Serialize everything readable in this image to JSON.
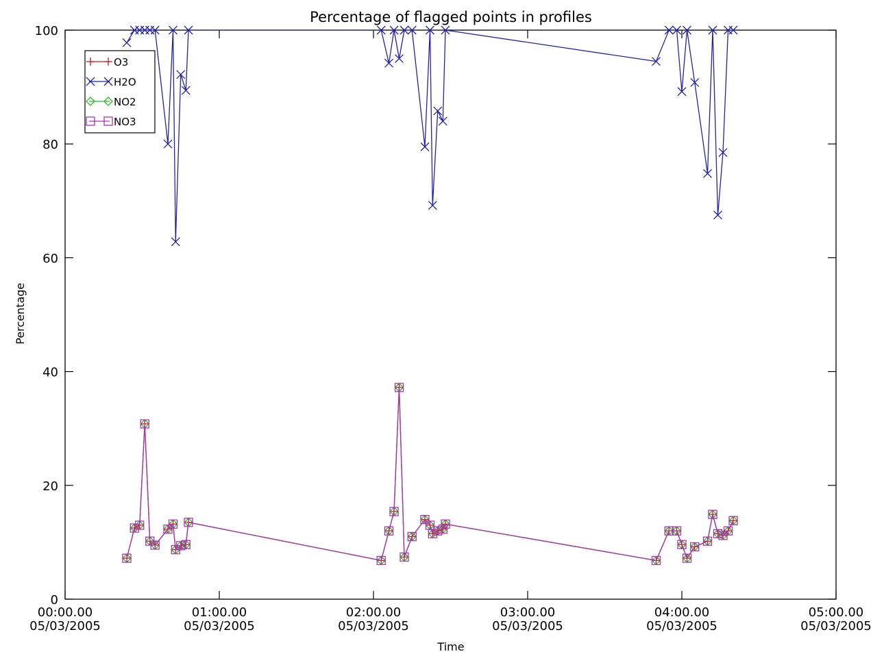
{
  "chart_data": {
    "type": "line",
    "title": "Percentage of flagged points in profiles",
    "xlabel": "Time",
    "ylabel": "Percentage",
    "xlim_minutes": [
      0,
      300
    ],
    "ylim": [
      0,
      100
    ],
    "x_tick_minutes": [
      0,
      60,
      120,
      180,
      240,
      300
    ],
    "x_tick_labels": [
      [
        "00:00.00",
        "05/03/2005"
      ],
      [
        "01:00.00",
        "05/03/2005"
      ],
      [
        "02:00.00",
        "05/03/2005"
      ],
      [
        "03:00.00",
        "05/03/2005"
      ],
      [
        "04:00.00",
        "05/03/2005"
      ],
      [
        "05:00.00",
        "05/03/2005"
      ]
    ],
    "y_ticks": [
      0,
      20,
      40,
      60,
      80,
      100
    ],
    "y_tick_labels": [
      "0",
      "20",
      "40",
      "60",
      "80",
      "100"
    ],
    "grid": false,
    "legend_position": "top-left",
    "series": [
      {
        "name": "O3",
        "color": "#d01818",
        "marker": "plus",
        "points": [
          [
            24,
            7.2
          ],
          [
            27,
            12.5
          ],
          [
            29,
            13
          ],
          [
            31,
            30.8
          ],
          [
            33,
            10.2
          ],
          [
            35,
            9.5
          ],
          [
            40,
            12.3
          ],
          [
            42,
            13.2
          ],
          [
            43,
            8.7
          ],
          [
            45,
            9.4
          ],
          [
            47,
            9.6
          ],
          [
            48,
            13.5
          ],
          [
            123,
            6.8
          ],
          [
            126,
            12
          ],
          [
            128,
            15.4
          ],
          [
            130,
            37.2
          ],
          [
            132,
            7.4
          ],
          [
            135,
            11
          ],
          [
            140,
            14
          ],
          [
            142,
            13
          ],
          [
            143,
            11.5
          ],
          [
            145,
            12
          ],
          [
            147,
            12.3
          ],
          [
            148,
            13.2
          ],
          [
            230,
            6.8
          ],
          [
            235,
            12
          ],
          [
            238,
            12
          ],
          [
            240,
            9.6
          ],
          [
            242,
            7.2
          ],
          [
            245,
            9.2
          ],
          [
            250,
            10.2
          ],
          [
            252,
            14.9
          ],
          [
            254,
            11.5
          ],
          [
            256,
            11.2
          ],
          [
            258,
            12
          ],
          [
            260,
            13.8
          ]
        ]
      },
      {
        "name": "H2O",
        "color": "#2222a8",
        "marker": "x",
        "points": [
          [
            24,
            97.8
          ],
          [
            27,
            100
          ],
          [
            29,
            100
          ],
          [
            31,
            100
          ],
          [
            33,
            100
          ],
          [
            35,
            100
          ],
          [
            40,
            80
          ],
          [
            42,
            100
          ],
          [
            43,
            62.8
          ],
          [
            45,
            92.2
          ],
          [
            47,
            89.4
          ],
          [
            48,
            100
          ],
          [
            123,
            100
          ],
          [
            126,
            94.2
          ],
          [
            128,
            100
          ],
          [
            130,
            95
          ],
          [
            132,
            100
          ],
          [
            135,
            100
          ],
          [
            140,
            79.5
          ],
          [
            142,
            100
          ],
          [
            143,
            69.2
          ],
          [
            145,
            85.8
          ],
          [
            147,
            84
          ],
          [
            148,
            100
          ],
          [
            230,
            94.5
          ],
          [
            235,
            100
          ],
          [
            238,
            100
          ],
          [
            240,
            89.2
          ],
          [
            242,
            100
          ],
          [
            245,
            90.8
          ],
          [
            250,
            74.8
          ],
          [
            252,
            100
          ],
          [
            254,
            67.5
          ],
          [
            256,
            78.5
          ],
          [
            258,
            100
          ],
          [
            260,
            100
          ]
        ]
      },
      {
        "name": "NO2",
        "color": "#22bb22",
        "marker": "diamond",
        "points": [
          [
            24,
            7.2
          ],
          [
            27,
            12.5
          ],
          [
            29,
            13
          ],
          [
            31,
            30.8
          ],
          [
            33,
            10.2
          ],
          [
            35,
            9.5
          ],
          [
            40,
            12.3
          ],
          [
            42,
            13.2
          ],
          [
            43,
            8.7
          ],
          [
            45,
            9.4
          ],
          [
            47,
            9.6
          ],
          [
            48,
            13.5
          ],
          [
            123,
            6.8
          ],
          [
            126,
            12
          ],
          [
            128,
            15.4
          ],
          [
            130,
            37.2
          ],
          [
            132,
            7.4
          ],
          [
            135,
            11
          ],
          [
            140,
            14
          ],
          [
            142,
            13
          ],
          [
            143,
            11.5
          ],
          [
            145,
            12
          ],
          [
            147,
            12.3
          ],
          [
            148,
            13.2
          ],
          [
            230,
            6.8
          ],
          [
            235,
            12
          ],
          [
            238,
            12
          ],
          [
            240,
            9.6
          ],
          [
            242,
            7.2
          ],
          [
            245,
            9.2
          ],
          [
            250,
            10.2
          ],
          [
            252,
            14.9
          ],
          [
            254,
            11.5
          ],
          [
            256,
            11.2
          ],
          [
            258,
            12
          ],
          [
            260,
            13.8
          ]
        ]
      },
      {
        "name": "NO3",
        "color": "#b030b8",
        "marker": "square",
        "points": [
          [
            24,
            7.2
          ],
          [
            27,
            12.5
          ],
          [
            29,
            13
          ],
          [
            31,
            30.8
          ],
          [
            33,
            10.2
          ],
          [
            35,
            9.5
          ],
          [
            40,
            12.3
          ],
          [
            42,
            13.2
          ],
          [
            43,
            8.7
          ],
          [
            45,
            9.4
          ],
          [
            47,
            9.6
          ],
          [
            48,
            13.5
          ],
          [
            123,
            6.8
          ],
          [
            126,
            12
          ],
          [
            128,
            15.4
          ],
          [
            130,
            37.2
          ],
          [
            132,
            7.4
          ],
          [
            135,
            11
          ],
          [
            140,
            14
          ],
          [
            142,
            13
          ],
          [
            143,
            11.5
          ],
          [
            145,
            12
          ],
          [
            147,
            12.3
          ],
          [
            148,
            13.2
          ],
          [
            230,
            6.8
          ],
          [
            235,
            12
          ],
          [
            238,
            12
          ],
          [
            240,
            9.6
          ],
          [
            242,
            7.2
          ],
          [
            245,
            9.2
          ],
          [
            250,
            10.2
          ],
          [
            252,
            14.9
          ],
          [
            254,
            11.5
          ],
          [
            256,
            11.2
          ],
          [
            258,
            12
          ],
          [
            260,
            13.8
          ]
        ]
      }
    ]
  }
}
